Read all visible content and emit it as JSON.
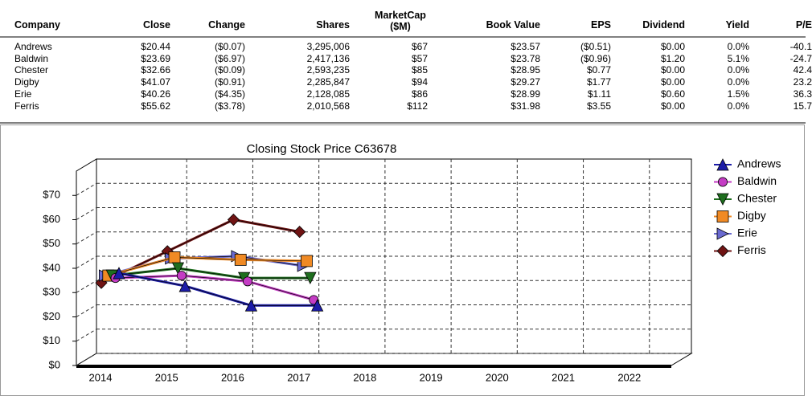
{
  "table": {
    "columns": [
      "Company",
      "Close",
      "Change",
      "Shares",
      "MarketCap ($M)",
      "Book Value",
      "EPS",
      "Dividend",
      "Yield",
      "P/E"
    ],
    "rows": [
      [
        "Andrews",
        "$20.44",
        "($0.07)",
        "3,295,006",
        "$67",
        "$23.57",
        "($0.51)",
        "$0.00",
        "0.0%",
        "-40.1"
      ],
      [
        "Baldwin",
        "$23.69",
        "($6.97)",
        "2,417,136",
        "$57",
        "$23.78",
        "($0.96)",
        "$1.20",
        "5.1%",
        "-24.7"
      ],
      [
        "Chester",
        "$32.66",
        "($0.09)",
        "2,593,235",
        "$85",
        "$28.95",
        "$0.77",
        "$0.00",
        "0.0%",
        "42.4"
      ],
      [
        "Digby",
        "$41.07",
        "($0.91)",
        "2,285,847",
        "$94",
        "$29.27",
        "$1.77",
        "$0.00",
        "0.0%",
        "23.2"
      ],
      [
        "Erie",
        "$40.26",
        "($4.35)",
        "2,128,085",
        "$86",
        "$28.99",
        "$1.11",
        "$0.60",
        "1.5%",
        "36.3"
      ],
      [
        "Ferris",
        "$55.62",
        "($3.78)",
        "2,010,568",
        "$112",
        "$31.98",
        "$3.55",
        "$0.00",
        "0.0%",
        "15.7"
      ]
    ]
  },
  "chart_data": {
    "type": "line",
    "title": "Closing Stock Price  C63678",
    "categories": [
      "2014",
      "2015",
      "2016",
      "2017",
      "2018",
      "2019",
      "2020",
      "2021",
      "2022"
    ],
    "ylim": [
      0,
      80
    ],
    "yticks": [
      {
        "value": 0,
        "label": "$0"
      },
      {
        "value": 10,
        "label": "$10"
      },
      {
        "value": 20,
        "label": "$20"
      },
      {
        "value": 30,
        "label": "$30"
      },
      {
        "value": 40,
        "label": "$40"
      },
      {
        "value": 50,
        "label": "$50"
      },
      {
        "value": 60,
        "label": "$60"
      },
      {
        "value": 70,
        "label": "$70"
      }
    ],
    "grid": true,
    "legend": "right",
    "series": [
      {
        "name": "Andrews",
        "color": "#1c1ca8",
        "marker": "triangle-up",
        "values": [
          38,
          32.7,
          24.7,
          24.7,
          null,
          null,
          null,
          null,
          null
        ]
      },
      {
        "name": "Baldwin",
        "color": "#c43cc4",
        "marker": "circle",
        "values": [
          36,
          37,
          34.6,
          27,
          null,
          null,
          null,
          null,
          null
        ]
      },
      {
        "name": "Chester",
        "color": "#1e6e1e",
        "marker": "triangle-down",
        "values": [
          37,
          40,
          36,
          36,
          null,
          null,
          null,
          null,
          null
        ]
      },
      {
        "name": "Digby",
        "color": "#f08a24",
        "marker": "square",
        "values": [
          37,
          44.5,
          43.5,
          43,
          null,
          null,
          null,
          null,
          null
        ]
      },
      {
        "name": "Erie",
        "color": "#6a6ad0",
        "marker": "triangle-right",
        "values": [
          37,
          44,
          45,
          41,
          null,
          null,
          null,
          null,
          null
        ]
      },
      {
        "name": "Ferris",
        "color": "#701414",
        "marker": "diamond",
        "values": [
          34,
          47,
          60,
          55,
          null,
          null,
          null,
          null,
          null
        ]
      }
    ]
  }
}
